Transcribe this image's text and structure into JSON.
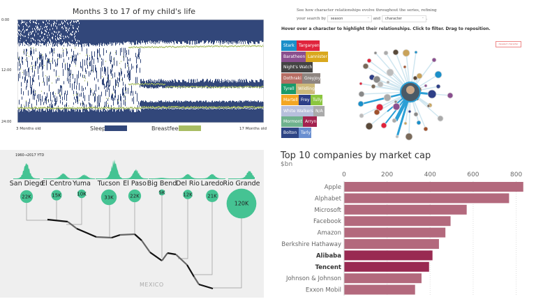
{
  "sleep_chart": {
    "title": "Months 3 to 17 of my child's life",
    "y_ticks": [
      "0:00",
      "12:00",
      "24:00"
    ],
    "x_start": "3 Months old",
    "x_end": "17 Months old",
    "legend": [
      {
        "label": "Sleep",
        "color": "#32477a"
      },
      {
        "label": "Breastfeed",
        "color": "#a8bd63"
      }
    ]
  },
  "got": {
    "intro_line1": "See how character relationships evolve throughout the series, refining",
    "intro_line2_prefix": "your search by",
    "season_select": "season",
    "and": "and",
    "character_select": "character",
    "period": ".",
    "hover_text": "Hover over a character to highlight their relationships. Click to filter. Drag to reposition.",
    "deselect_label": "deselect character",
    "families": [
      [
        {
          "label": "Stark",
          "color": "#1a8fc9"
        },
        {
          "label": "Targaryen",
          "color": "#e0243c"
        }
      ],
      [
        {
          "label": "Baratheon",
          "color": "#8a4f8f"
        },
        {
          "label": "Lannister",
          "color": "#d9a81e"
        }
      ],
      [
        {
          "label": "Night's Watch",
          "color": "#444444"
        }
      ],
      [
        {
          "label": "Dothraki",
          "color": "#b66d63"
        },
        {
          "label": "Greyjoy",
          "color": "#8e8580"
        }
      ],
      [
        {
          "label": "Tyrell",
          "color": "#1a9a6a"
        },
        {
          "label": "Wildling",
          "color": "#cdb97a"
        }
      ],
      [
        {
          "label": "Martell",
          "color": "#f3a623"
        },
        {
          "label": "Frey",
          "color": "#2e3f87"
        },
        {
          "label": "Tully",
          "color": "#8cc63f"
        }
      ],
      [
        {
          "label": "White Walkers",
          "color": "#b7bfdc"
        },
        {
          "label": "N/A",
          "color": "#aaaaaa"
        }
      ],
      [
        {
          "label": "Mormont",
          "color": "#6fb28e"
        },
        {
          "label": "Arryn",
          "color": "#a3224f"
        }
      ],
      [
        {
          "label": "Bolton",
          "color": "#2e4585"
        },
        {
          "label": "Tarly",
          "color": "#6a8fd0"
        }
      ]
    ]
  },
  "border_map": {
    "note": "1960→2017 YTD",
    "country_label": "MEXICO",
    "accent": "#45c393",
    "sectors": [
      {
        "name": "San Diego",
        "value": "22K",
        "n": 22
      },
      {
        "name": "El Centro",
        "value": "15K",
        "n": 15
      },
      {
        "name": "Yuma",
        "value": "10K",
        "n": 10
      },
      {
        "name": "Tucson",
        "value": "33K",
        "n": 33
      },
      {
        "name": "El Paso",
        "value": "22K",
        "n": 22
      },
      {
        "name": "Big Bend",
        "value": "5K",
        "n": 5
      },
      {
        "name": "Del Rio",
        "value": "12K",
        "n": 12
      },
      {
        "name": "Laredo",
        "value": "21K",
        "n": 21
      },
      {
        "name": "Rio Grande",
        "value": "120K",
        "n": 120
      }
    ]
  },
  "chart_data": {
    "type": "bar",
    "title": "Top 10 companies by market cap",
    "ylabel": "$bn",
    "xlim": [
      0,
      850
    ],
    "ticks": [
      0,
      200,
      400,
      600,
      800
    ],
    "categories": [
      "Apple",
      "Alphabet",
      "Microsoft",
      "Facebook",
      "Amazon",
      "Berkshire Hathaway",
      "Alibaba",
      "Tencent",
      "Johnson & Johnson",
      "Exxon Mobil"
    ],
    "values": [
      833,
      767,
      570,
      495,
      471,
      441,
      411,
      395,
      360,
      330
    ],
    "highlighted": [
      "Alibaba",
      "Tencent"
    ],
    "colors": {
      "default": "#b3697d",
      "highlight": "#992a52"
    },
    "grid": true
  }
}
